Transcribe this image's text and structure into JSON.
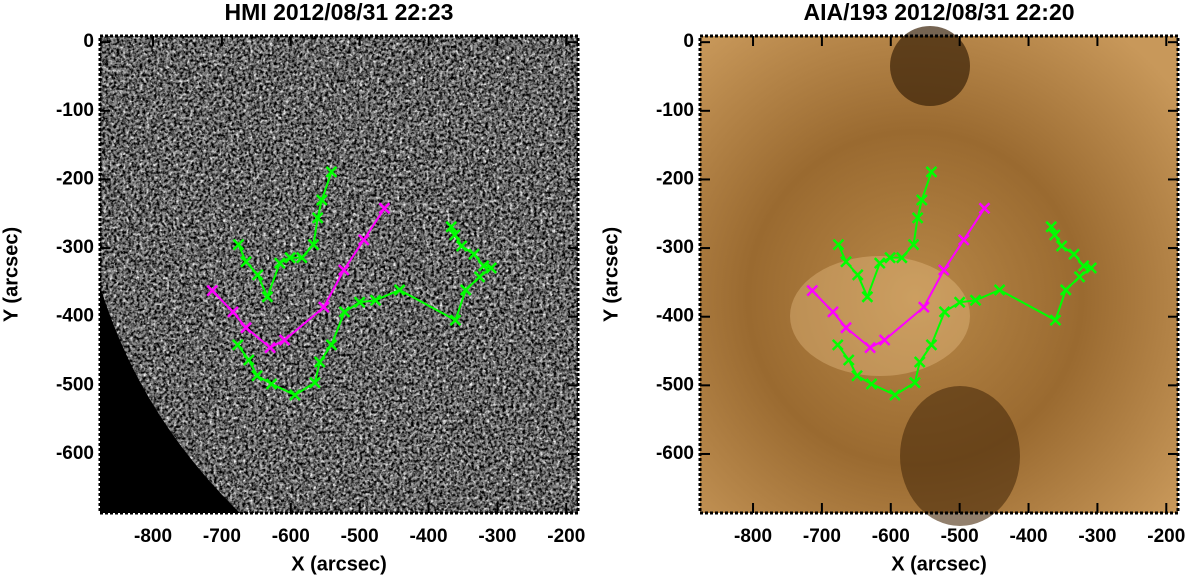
{
  "chart_data": [
    {
      "type": "line",
      "title": "HMI 2012/08/31 22:23",
      "xlabel": "X (arcsec)",
      "ylabel": "Y (arcsec)",
      "background": "hmi",
      "xlim": [
        -877,
        -183
      ],
      "ylim": [
        -686,
        9
      ],
      "xticks": [
        -800,
        -700,
        -600,
        -500,
        -400,
        -300,
        -200
      ],
      "yticks": [
        0,
        -100,
        -200,
        -300,
        -400,
        -500,
        -600
      ],
      "series": [
        {
          "color": "#00ff00",
          "x": [
            -676,
            -665,
            -648,
            -634,
            -616,
            -601,
            -584,
            -567,
            -561,
            -555,
            -541
          ],
          "values": [
            -295,
            -320,
            -339,
            -371,
            -322,
            -314,
            -314,
            -295,
            -256,
            -230,
            -189
          ]
        },
        {
          "color": "#ff00ff",
          "x": [
            -714,
            -684,
            -665,
            -630,
            -609,
            -552,
            -523,
            -494,
            -464
          ],
          "values": [
            -362,
            -393,
            -416,
            -445,
            -434,
            -386,
            -332,
            -288,
            -242
          ]
        },
        {
          "color": "#00ff00",
          "x": [
            -677,
            -661,
            -649,
            -628,
            -594,
            -565,
            -558,
            -541,
            -522,
            -500,
            -477,
            -442,
            -361,
            -346,
            -326,
            -309,
            -320,
            -334,
            -352,
            -362,
            -367
          ],
          "values": [
            -441,
            -463,
            -486,
            -498,
            -514,
            -496,
            -466,
            -441,
            -393,
            -379,
            -376,
            -361,
            -405,
            -361,
            -342,
            -329,
            -326,
            -309,
            -297,
            -281,
            -269
          ]
        }
      ]
    },
    {
      "type": "line",
      "title": "AIA/193 2012/08/31 22:20",
      "xlabel": "X (arcsec)",
      "ylabel": "Y (arcsec)",
      "background": "aia",
      "xlim": [
        -877,
        -183
      ],
      "ylim": [
        -686,
        9
      ],
      "xticks": [
        -800,
        -700,
        -600,
        -500,
        -400,
        -300,
        -200
      ],
      "yticks": [
        0,
        -100,
        -200,
        -300,
        -400,
        -500,
        -600
      ],
      "series": [
        {
          "color": "#00ff00",
          "x": [
            -676,
            -665,
            -648,
            -634,
            -616,
            -601,
            -584,
            -567,
            -561,
            -555,
            -541
          ],
          "values": [
            -295,
            -320,
            -339,
            -371,
            -322,
            -314,
            -314,
            -295,
            -256,
            -230,
            -189
          ]
        },
        {
          "color": "#ff00ff",
          "x": [
            -714,
            -684,
            -665,
            -630,
            -609,
            -552,
            -523,
            -494,
            -464
          ],
          "values": [
            -362,
            -393,
            -416,
            -445,
            -434,
            -386,
            -332,
            -288,
            -242
          ]
        },
        {
          "color": "#00ff00",
          "x": [
            -677,
            -661,
            -649,
            -628,
            -594,
            -565,
            -558,
            -541,
            -522,
            -500,
            -477,
            -442,
            -361,
            -346,
            -326,
            -309,
            -320,
            -334,
            -352,
            -362,
            -367
          ],
          "values": [
            -441,
            -463,
            -486,
            -498,
            -514,
            -496,
            -466,
            -441,
            -393,
            -379,
            -376,
            -361,
            -405,
            -361,
            -342,
            -329,
            -326,
            -309,
            -297,
            -281,
            -269
          ]
        }
      ]
    }
  ]
}
